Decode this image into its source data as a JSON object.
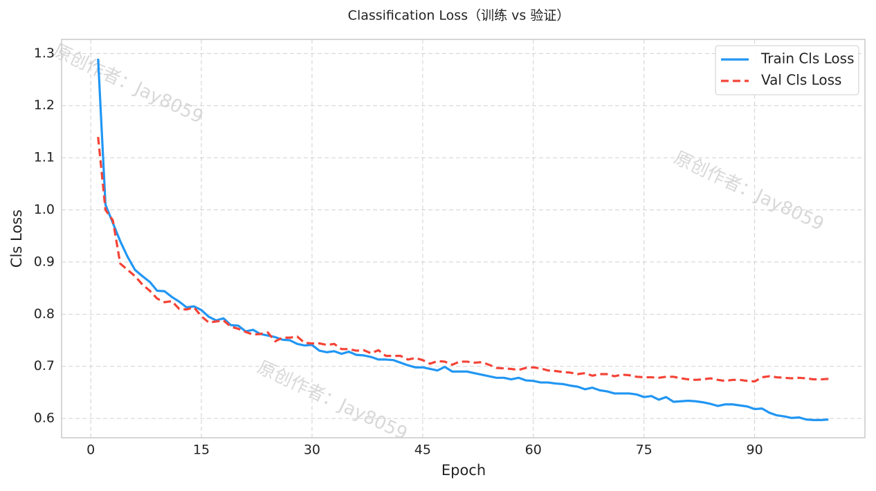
{
  "chart_data": {
    "type": "line",
    "title": "Classification Loss（训练 vs 验证）",
    "xlabel": "Epoch",
    "ylabel": "Cls Loss",
    "watermark": "原创作者：Jay8059",
    "x": [
      1,
      2,
      3,
      4,
      5,
      6,
      7,
      8,
      9,
      10,
      11,
      12,
      13,
      14,
      15,
      16,
      17,
      18,
      19,
      20,
      21,
      22,
      23,
      24,
      25,
      26,
      27,
      28,
      29,
      30,
      31,
      32,
      33,
      34,
      35,
      36,
      37,
      38,
      39,
      40,
      41,
      42,
      43,
      44,
      45,
      46,
      47,
      48,
      49,
      50,
      51,
      52,
      53,
      54,
      55,
      56,
      57,
      58,
      59,
      60,
      61,
      62,
      63,
      64,
      65,
      66,
      67,
      68,
      69,
      70,
      71,
      72,
      73,
      74,
      75,
      76,
      77,
      78,
      79,
      80,
      81,
      82,
      83,
      84,
      85,
      86,
      87,
      88,
      89,
      90,
      91,
      92,
      93,
      94,
      95,
      96,
      97,
      98,
      99,
      100
    ],
    "series": [
      {
        "name": "Train Cls Loss",
        "color": "#2196f3",
        "linestyle": "solid",
        "values": [
          1.29,
          1.01,
          0.975,
          0.94,
          0.91,
          0.885,
          0.873,
          0.862,
          0.845,
          0.844,
          0.833,
          0.824,
          0.813,
          0.815,
          0.808,
          0.795,
          0.788,
          0.792,
          0.779,
          0.778,
          0.767,
          0.77,
          0.762,
          0.759,
          0.756,
          0.751,
          0.75,
          0.743,
          0.74,
          0.741,
          0.73,
          0.727,
          0.729,
          0.724,
          0.728,
          0.722,
          0.721,
          0.718,
          0.713,
          0.713,
          0.712,
          0.707,
          0.702,
          0.698,
          0.698,
          0.695,
          0.692,
          0.699,
          0.69,
          0.69,
          0.69,
          0.687,
          0.684,
          0.681,
          0.678,
          0.678,
          0.675,
          0.678,
          0.673,
          0.672,
          0.669,
          0.669,
          0.667,
          0.666,
          0.663,
          0.661,
          0.656,
          0.659,
          0.654,
          0.652,
          0.648,
          0.648,
          0.648,
          0.646,
          0.641,
          0.643,
          0.636,
          0.641,
          0.632,
          0.633,
          0.634,
          0.633,
          0.631,
          0.628,
          0.624,
          0.627,
          0.627,
          0.625,
          0.623,
          0.618,
          0.619,
          0.611,
          0.606,
          0.604,
          0.601,
          0.602,
          0.598,
          0.597,
          0.597,
          0.598
        ]
      },
      {
        "name": "Val Cls Loss",
        "color": "#f44336",
        "linestyle": "dashed",
        "values": [
          1.14,
          1.0,
          0.98,
          0.897,
          0.885,
          0.873,
          0.857,
          0.845,
          0.83,
          0.823,
          0.825,
          0.81,
          0.809,
          0.813,
          0.796,
          0.784,
          0.786,
          0.788,
          0.776,
          0.772,
          0.766,
          0.761,
          0.762,
          0.765,
          0.748,
          0.755,
          0.755,
          0.757,
          0.745,
          0.744,
          0.744,
          0.741,
          0.743,
          0.733,
          0.733,
          0.73,
          0.731,
          0.725,
          0.731,
          0.72,
          0.72,
          0.72,
          0.713,
          0.716,
          0.712,
          0.705,
          0.71,
          0.709,
          0.703,
          0.709,
          0.709,
          0.707,
          0.708,
          0.703,
          0.697,
          0.696,
          0.695,
          0.693,
          0.697,
          0.698,
          0.696,
          0.692,
          0.691,
          0.689,
          0.688,
          0.685,
          0.687,
          0.682,
          0.685,
          0.685,
          0.681,
          0.684,
          0.683,
          0.68,
          0.679,
          0.679,
          0.678,
          0.68,
          0.68,
          0.677,
          0.675,
          0.674,
          0.675,
          0.677,
          0.674,
          0.672,
          0.674,
          0.674,
          0.672,
          0.671,
          0.679,
          0.681,
          0.679,
          0.678,
          0.677,
          0.678,
          0.677,
          0.675,
          0.675,
          0.676
        ]
      }
    ],
    "xlim": [
      -3.95,
      104.95
    ],
    "ylim": [
      0.563,
      1.327
    ],
    "xticks": [
      0,
      15,
      30,
      45,
      60,
      75,
      90
    ],
    "yticks": [
      0.6,
      0.7,
      0.8,
      0.9,
      {
        "value": 1,
        "label": "1.0"
      },
      1.1,
      1.2,
      1.3
    ],
    "grid": true,
    "legend": "upper right"
  }
}
